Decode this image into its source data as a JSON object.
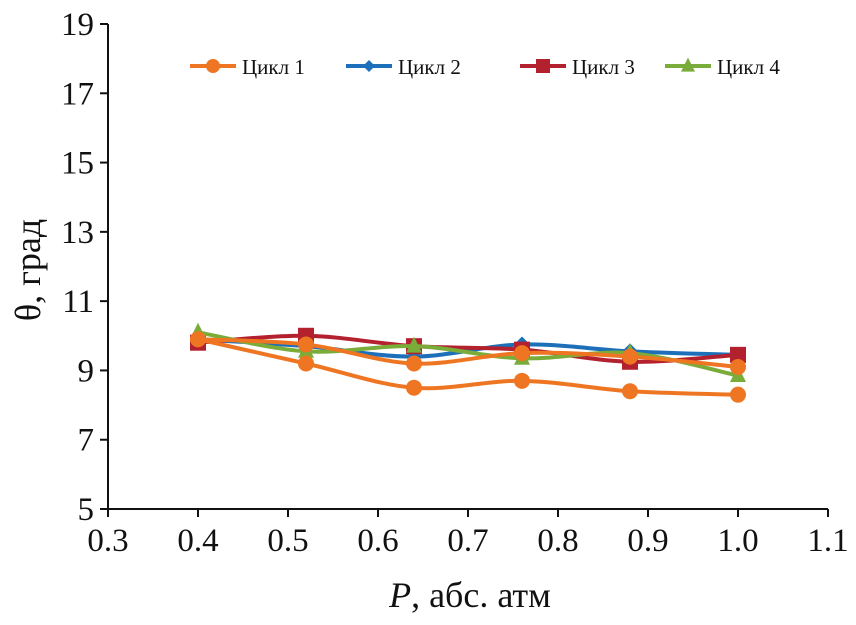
{
  "chart_data": {
    "type": "line",
    "xlabel_var": "P",
    "xlabel_rest": ", абс. атм",
    "ylabel": "θ, град",
    "xlim": [
      0.3,
      1.1
    ],
    "ylim": [
      5,
      19
    ],
    "xticks": [
      "0.3",
      "0.4",
      "0.5",
      "0.6",
      "0.7",
      "0.8",
      "0.9",
      "1.0",
      "1.1"
    ],
    "yticks": [
      "5",
      "7",
      "9",
      "11",
      "13",
      "15",
      "17",
      "19"
    ],
    "grid": false,
    "legend_position": "top",
    "x": [
      0.4,
      0.52,
      0.64,
      0.76,
      0.88,
      1.0
    ],
    "series": [
      {
        "name": "Цикл 1",
        "color": "#ee7623",
        "marker": "circle",
        "values": [
          9.9,
          9.2,
          8.5,
          8.7,
          8.4,
          8.3
        ]
      },
      {
        "name": "Цикл 2",
        "color": "#1c6fb8",
        "marker": "diamond",
        "values": [
          9.9,
          9.7,
          9.4,
          9.75,
          9.55,
          9.45
        ]
      },
      {
        "name": "Цикл 3",
        "color": "#b3202e",
        "marker": "square",
        "values": [
          9.8,
          10.0,
          9.7,
          9.6,
          9.25,
          9.45
        ]
      },
      {
        "name": "Цикл 4",
        "color": "#7aac3a",
        "marker": "triangle",
        "values": [
          10.1,
          9.55,
          9.7,
          9.35,
          9.5,
          8.85
        ]
      },
      {
        "name": "",
        "color": "#ee7623",
        "marker": "circle",
        "values": [
          9.9,
          9.75,
          9.2,
          9.5,
          9.4,
          9.1
        ]
      }
    ]
  }
}
